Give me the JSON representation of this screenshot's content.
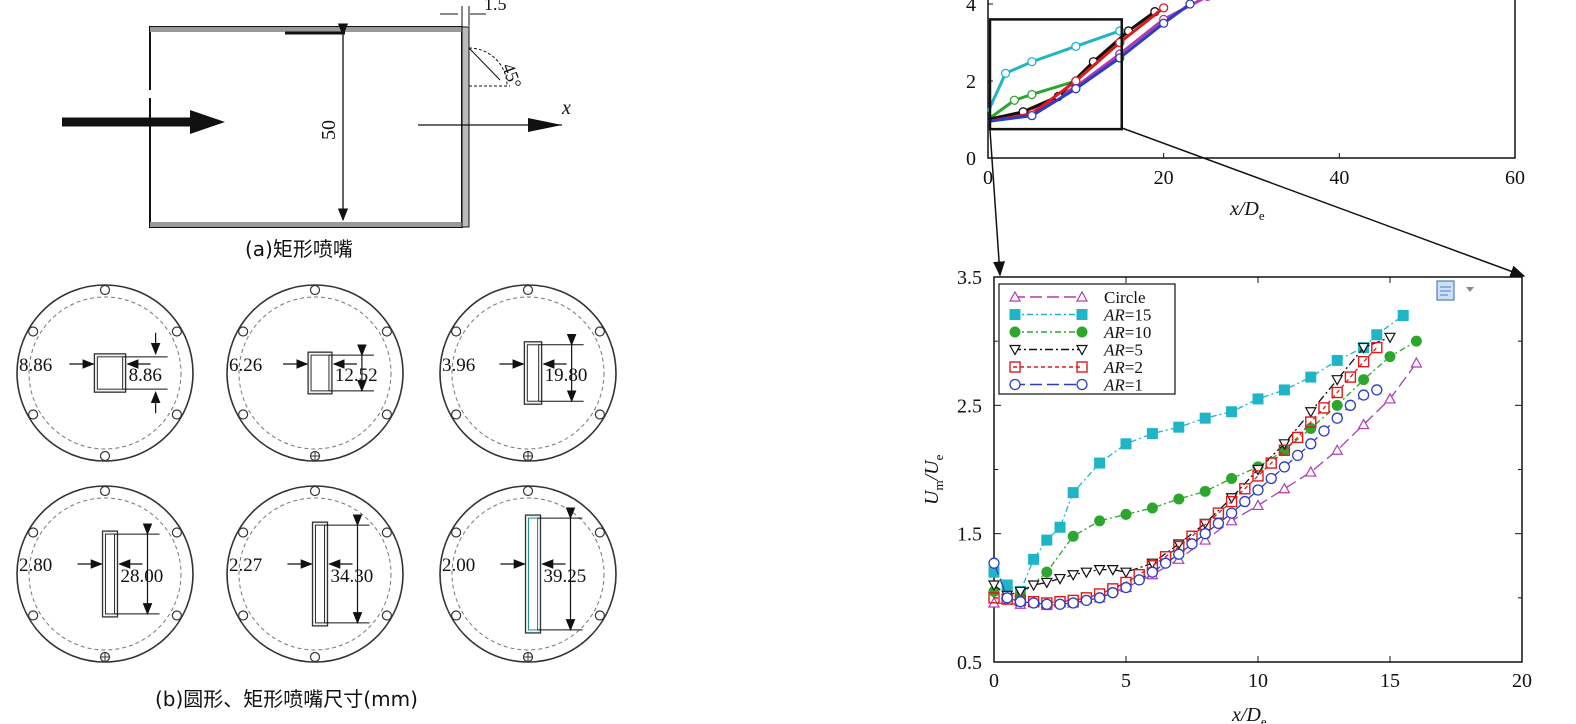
{
  "panel_a": {
    "caption": "(a)矩形喷嘴",
    "dim_wall": "1.5",
    "dim_angle": "45°",
    "dim_height": "50",
    "axis_x": "x"
  },
  "panel_b": {
    "caption": "(b)圆形、矩形喷嘴尺寸(mm)",
    "nozzles": [
      {
        "width": "8.86",
        "height": "8.86"
      },
      {
        "width": "6.26",
        "height": "12.52"
      },
      {
        "width": "3.96",
        "height": "19.80"
      },
      {
        "width": "2.80",
        "height": "28.00"
      },
      {
        "width": "2.27",
        "height": "34.30"
      },
      {
        "width": "2.00",
        "height": "39.25"
      }
    ]
  },
  "chart_data": [
    {
      "type": "line",
      "title": "",
      "xlabel": "x/D",
      "xlabel_sub": "e",
      "ylabel": "",
      "xlim": [
        0,
        60
      ],
      "ylim": [
        0,
        4
      ],
      "xticks": [
        "0",
        "20",
        "40",
        "60"
      ],
      "yticks": [
        "0",
        "2",
        "4"
      ],
      "series": [
        {
          "name": "Circle",
          "color": "#b03ab0",
          "x": [
            0,
            5,
            10,
            15,
            20,
            25
          ],
          "y": [
            0.95,
            1.2,
            1.85,
            2.7,
            3.6,
            4.2
          ]
        },
        {
          "name": "AR=15",
          "color": "#1fb5c7",
          "x": [
            0,
            2,
            5,
            10,
            15
          ],
          "y": [
            1.2,
            2.2,
            2.5,
            2.9,
            3.3
          ]
        },
        {
          "name": "AR=10",
          "color": "#2da62d",
          "x": [
            0,
            3,
            5,
            10,
            15
          ],
          "y": [
            1.0,
            1.5,
            1.65,
            2.0,
            3.0
          ]
        },
        {
          "name": "AR=5",
          "color": "#111111",
          "x": [
            0,
            4,
            8,
            12,
            16,
            19
          ],
          "y": [
            1.0,
            1.2,
            1.6,
            2.5,
            3.3,
            3.8
          ]
        },
        {
          "name": "AR=2",
          "color": "#e0191b",
          "x": [
            0,
            5,
            10,
            15,
            20
          ],
          "y": [
            0.95,
            1.15,
            2.0,
            3.0,
            3.9
          ]
        },
        {
          "name": "AR=1",
          "color": "#2a3dc4",
          "x": [
            0,
            5,
            10,
            15,
            20,
            23
          ],
          "y": [
            0.95,
            1.1,
            1.8,
            2.6,
            3.5,
            4.0
          ]
        }
      ],
      "zoom_box": {
        "x": [
          0,
          15
        ],
        "y": [
          0.75,
          3.6
        ]
      }
    },
    {
      "type": "line",
      "title": "",
      "xlabel": "x/D",
      "xlabel_sub": "e",
      "ylabel": "U",
      "ylabel_sub1": "m",
      "ylabel_mid": "/U",
      "ylabel_sub2": "e",
      "xlim": [
        0,
        20
      ],
      "ylim": [
        0.5,
        3.5
      ],
      "xticks": [
        "0",
        "5",
        "10",
        "15",
        "20"
      ],
      "yticks": [
        "0.5",
        "1.5",
        "2.5",
        "3.5"
      ],
      "legend": "top-left",
      "series": [
        {
          "name": "Circle",
          "label_ar": "",
          "label_val": "Circle",
          "marker": "triangle-up",
          "color": "#b03ab0",
          "dash": "12,5",
          "x": [
            0,
            1,
            2,
            3,
            4,
            5,
            6,
            7,
            8,
            9,
            10,
            11,
            12,
            13,
            14,
            15,
            16
          ],
          "y": [
            0.96,
            0.95,
            0.94,
            0.96,
            1.0,
            1.08,
            1.18,
            1.3,
            1.45,
            1.6,
            1.72,
            1.85,
            1.98,
            2.15,
            2.35,
            2.55,
            2.83
          ]
        },
        {
          "name": "AR=15",
          "label_ar": "AR",
          "label_val": "=15",
          "marker": "square-filled",
          "color": "#1fb5c7",
          "dash": "6,3,2,3",
          "x": [
            0,
            0.5,
            1,
            1.5,
            2,
            2.5,
            3,
            4,
            5,
            6,
            7,
            8,
            9,
            10,
            11,
            12,
            13,
            14,
            14.5,
            15.5
          ],
          "y": [
            1.2,
            1.1,
            1.05,
            1.3,
            1.45,
            1.55,
            1.82,
            2.05,
            2.2,
            2.28,
            2.33,
            2.4,
            2.45,
            2.55,
            2.62,
            2.72,
            2.85,
            2.95,
            3.05,
            3.2
          ]
        },
        {
          "name": "AR=10",
          "label_ar": "AR",
          "label_val": "=10",
          "marker": "circle-filled",
          "color": "#2da62d",
          "dash": "6,3,2,3",
          "x": [
            0,
            0.5,
            1,
            2,
            3,
            4,
            5,
            6,
            7,
            8,
            9,
            10,
            11,
            12,
            13,
            14,
            15,
            16
          ],
          "y": [
            1.05,
            1.0,
            1.02,
            1.2,
            1.48,
            1.6,
            1.65,
            1.7,
            1.77,
            1.83,
            1.93,
            2.02,
            2.15,
            2.32,
            2.5,
            2.7,
            2.88,
            3.0
          ]
        },
        {
          "name": "AR=5",
          "label_ar": "AR",
          "label_val": "=5",
          "marker": "triangle-down",
          "color": "#111111",
          "dash": "8,3,2,3",
          "x": [
            0,
            0.5,
            1,
            1.5,
            2,
            2.5,
            3,
            3.5,
            4,
            4.5,
            5,
            6,
            7,
            8,
            9,
            10,
            11,
            12,
            13,
            14,
            15
          ],
          "y": [
            1.1,
            1.02,
            1.05,
            1.1,
            1.12,
            1.15,
            1.18,
            1.2,
            1.22,
            1.22,
            1.2,
            1.27,
            1.42,
            1.58,
            1.78,
            2.0,
            2.2,
            2.45,
            2.7,
            2.95,
            3.03
          ]
        },
        {
          "name": "AR=2",
          "label_ar": "AR",
          "label_val": "=2",
          "marker": "square-open",
          "color": "#e0191b",
          "dash": "4,3",
          "x": [
            0,
            0.5,
            1,
            1.5,
            2,
            2.5,
            3,
            3.5,
            4,
            4.5,
            5,
            5.5,
            6,
            6.5,
            7,
            7.5,
            8,
            8.5,
            9,
            9.5,
            10,
            10.5,
            11,
            11.5,
            12,
            12.5,
            13,
            13.5,
            14,
            14.5
          ],
          "y": [
            1.0,
            0.99,
            0.98,
            0.97,
            0.96,
            0.97,
            0.98,
            1.0,
            1.03,
            1.07,
            1.12,
            1.18,
            1.25,
            1.32,
            1.4,
            1.48,
            1.57,
            1.66,
            1.75,
            1.85,
            1.95,
            2.05,
            2.15,
            2.25,
            2.37,
            2.48,
            2.6,
            2.72,
            2.84,
            2.95
          ]
        },
        {
          "name": "AR=1",
          "label_ar": "AR",
          "label_val": "=1",
          "marker": "circle-open",
          "color": "#2a3dc4",
          "dash": "12,5",
          "x": [
            0,
            0.5,
            1,
            1.5,
            2,
            2.5,
            3,
            3.5,
            4,
            4.5,
            5,
            5.5,
            6,
            6.5,
            7,
            7.5,
            8,
            8.5,
            9,
            9.5,
            10,
            10.5,
            11,
            11.5,
            12,
            12.5,
            13,
            13.5,
            14,
            14.5
          ],
          "y": [
            1.27,
            1.0,
            0.97,
            0.96,
            0.95,
            0.95,
            0.96,
            0.98,
            1.0,
            1.04,
            1.08,
            1.14,
            1.2,
            1.27,
            1.34,
            1.42,
            1.5,
            1.58,
            1.66,
            1.75,
            1.84,
            1.93,
            2.02,
            2.11,
            2.2,
            2.3,
            2.4,
            2.5,
            2.58,
            2.62
          ]
        }
      ]
    }
  ]
}
